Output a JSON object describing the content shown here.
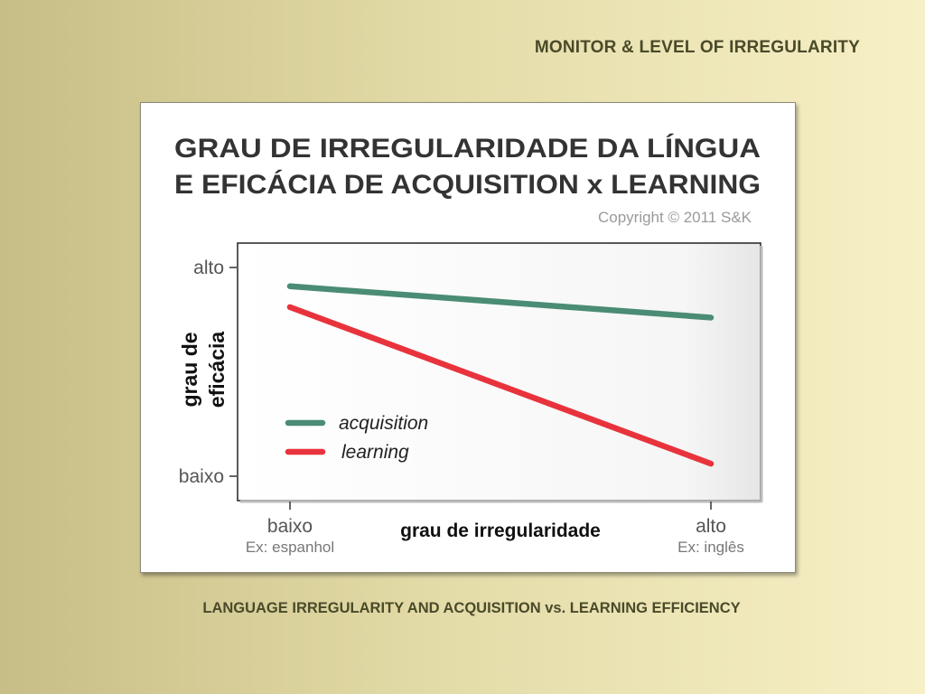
{
  "slide_title": "MONITOR & LEVEL OF IRREGULARITY",
  "caption": "LANGUAGE IRREGULARITY AND ACQUISITION vs. LEARNING EFFICIENCY",
  "chart_data": {
    "type": "line",
    "title_line1": "GRAU DE IRREGULARIDADE DA LÍNGUA",
    "title_line2": "E EFICÁCIA DE ACQUISITION x LEARNING",
    "copyright": "Copyright © 2011 S&K",
    "xlabel": "grau de irregularidade",
    "ylabel_line1": "grau de",
    "ylabel_line2": "eficácia",
    "x_ticks": [
      {
        "label": "baixo",
        "sublabel": "Ex: espanhol"
      },
      {
        "label": "alto",
        "sublabel": "Ex: inglês"
      }
    ],
    "y_ticks": [
      {
        "label": "alto",
        "value": 1
      },
      {
        "label": "baixo",
        "value": 0
      }
    ],
    "ylim": [
      0,
      1
    ],
    "grid": false,
    "legend_position": "lower-left",
    "series": [
      {
        "name": "acquisition",
        "color": "#4a8c74",
        "values": [
          0.91,
          0.76
        ]
      },
      {
        "name": "learning",
        "color": "#e8333d",
        "values": [
          0.81,
          0.06
        ]
      }
    ]
  }
}
